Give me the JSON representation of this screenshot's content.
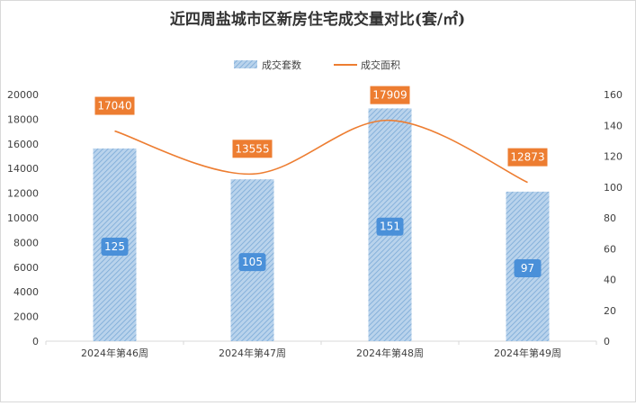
{
  "chart_data": {
    "type": "bar",
    "title": "近四周盐城市区新房住宅成交量对比(套/㎡)",
    "categories": [
      "2024年第46周",
      "2024年第47周",
      "2024年第48周",
      "2024年第49周"
    ],
    "series": [
      {
        "name": "成交套数",
        "kind": "bar",
        "axis": "right",
        "values": [
          125,
          105,
          151,
          97
        ],
        "color": "#9dc3e6",
        "label_color": "#4a90d9"
      },
      {
        "name": "成交面积",
        "kind": "line",
        "axis": "left",
        "values": [
          17040,
          13555,
          17909,
          12873
        ],
        "color": "#ed7d31",
        "label_color": "#ed7d31"
      }
    ],
    "y_left": {
      "min": 0,
      "max": 20000,
      "step": 2000,
      "ticks": [
        "0",
        "2000",
        "4000",
        "6000",
        "8000",
        "10000",
        "12000",
        "14000",
        "16000",
        "18000",
        "20000"
      ]
    },
    "y_right": {
      "min": 0,
      "max": 160,
      "step": 20,
      "ticks": [
        "0",
        "20",
        "40",
        "60",
        "80",
        "100",
        "120",
        "140",
        "160"
      ]
    },
    "legend_position": "top-center",
    "grid": false
  }
}
